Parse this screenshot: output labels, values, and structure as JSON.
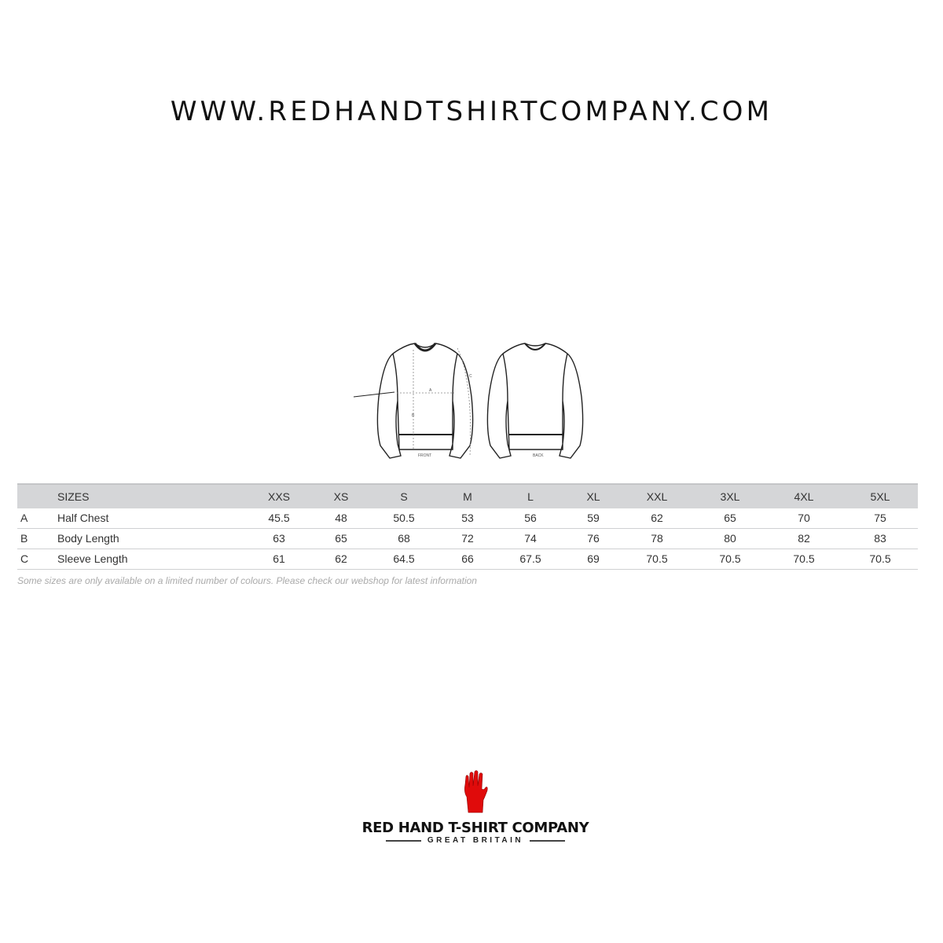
{
  "website": "WWW.REDHANDTSHIRTCOMPANY.COM",
  "diagram": {
    "front_label": "FRONT",
    "back_label": "BACK",
    "markers": [
      "A",
      "B",
      "C"
    ]
  },
  "size_table": {
    "header_label": "SIZES",
    "sizes": [
      "XXS",
      "XS",
      "S",
      "M",
      "L",
      "XL",
      "XXL",
      "3XL",
      "4XL",
      "5XL"
    ],
    "rows": [
      {
        "code": "A",
        "name": "Half Chest",
        "values": [
          "45.5",
          "48",
          "50.5",
          "53",
          "56",
          "59",
          "62",
          "65",
          "70",
          "75"
        ]
      },
      {
        "code": "B",
        "name": "Body Length",
        "values": [
          "63",
          "65",
          "68",
          "72",
          "74",
          "76",
          "78",
          "80",
          "82",
          "83"
        ]
      },
      {
        "code": "C",
        "name": "Sleeve Length",
        "values": [
          "61",
          "62",
          "64.5",
          "66",
          "67.5",
          "69",
          "70.5",
          "70.5",
          "70.5",
          "70.5"
        ]
      }
    ],
    "note": "Some sizes are only available on a limited number of colours. Please check our webshop for latest information"
  },
  "logo": {
    "name": "RED HAND T-SHIRT COMPANY",
    "tagline": "GREAT BRITAIN",
    "color": "#e00b0b"
  }
}
